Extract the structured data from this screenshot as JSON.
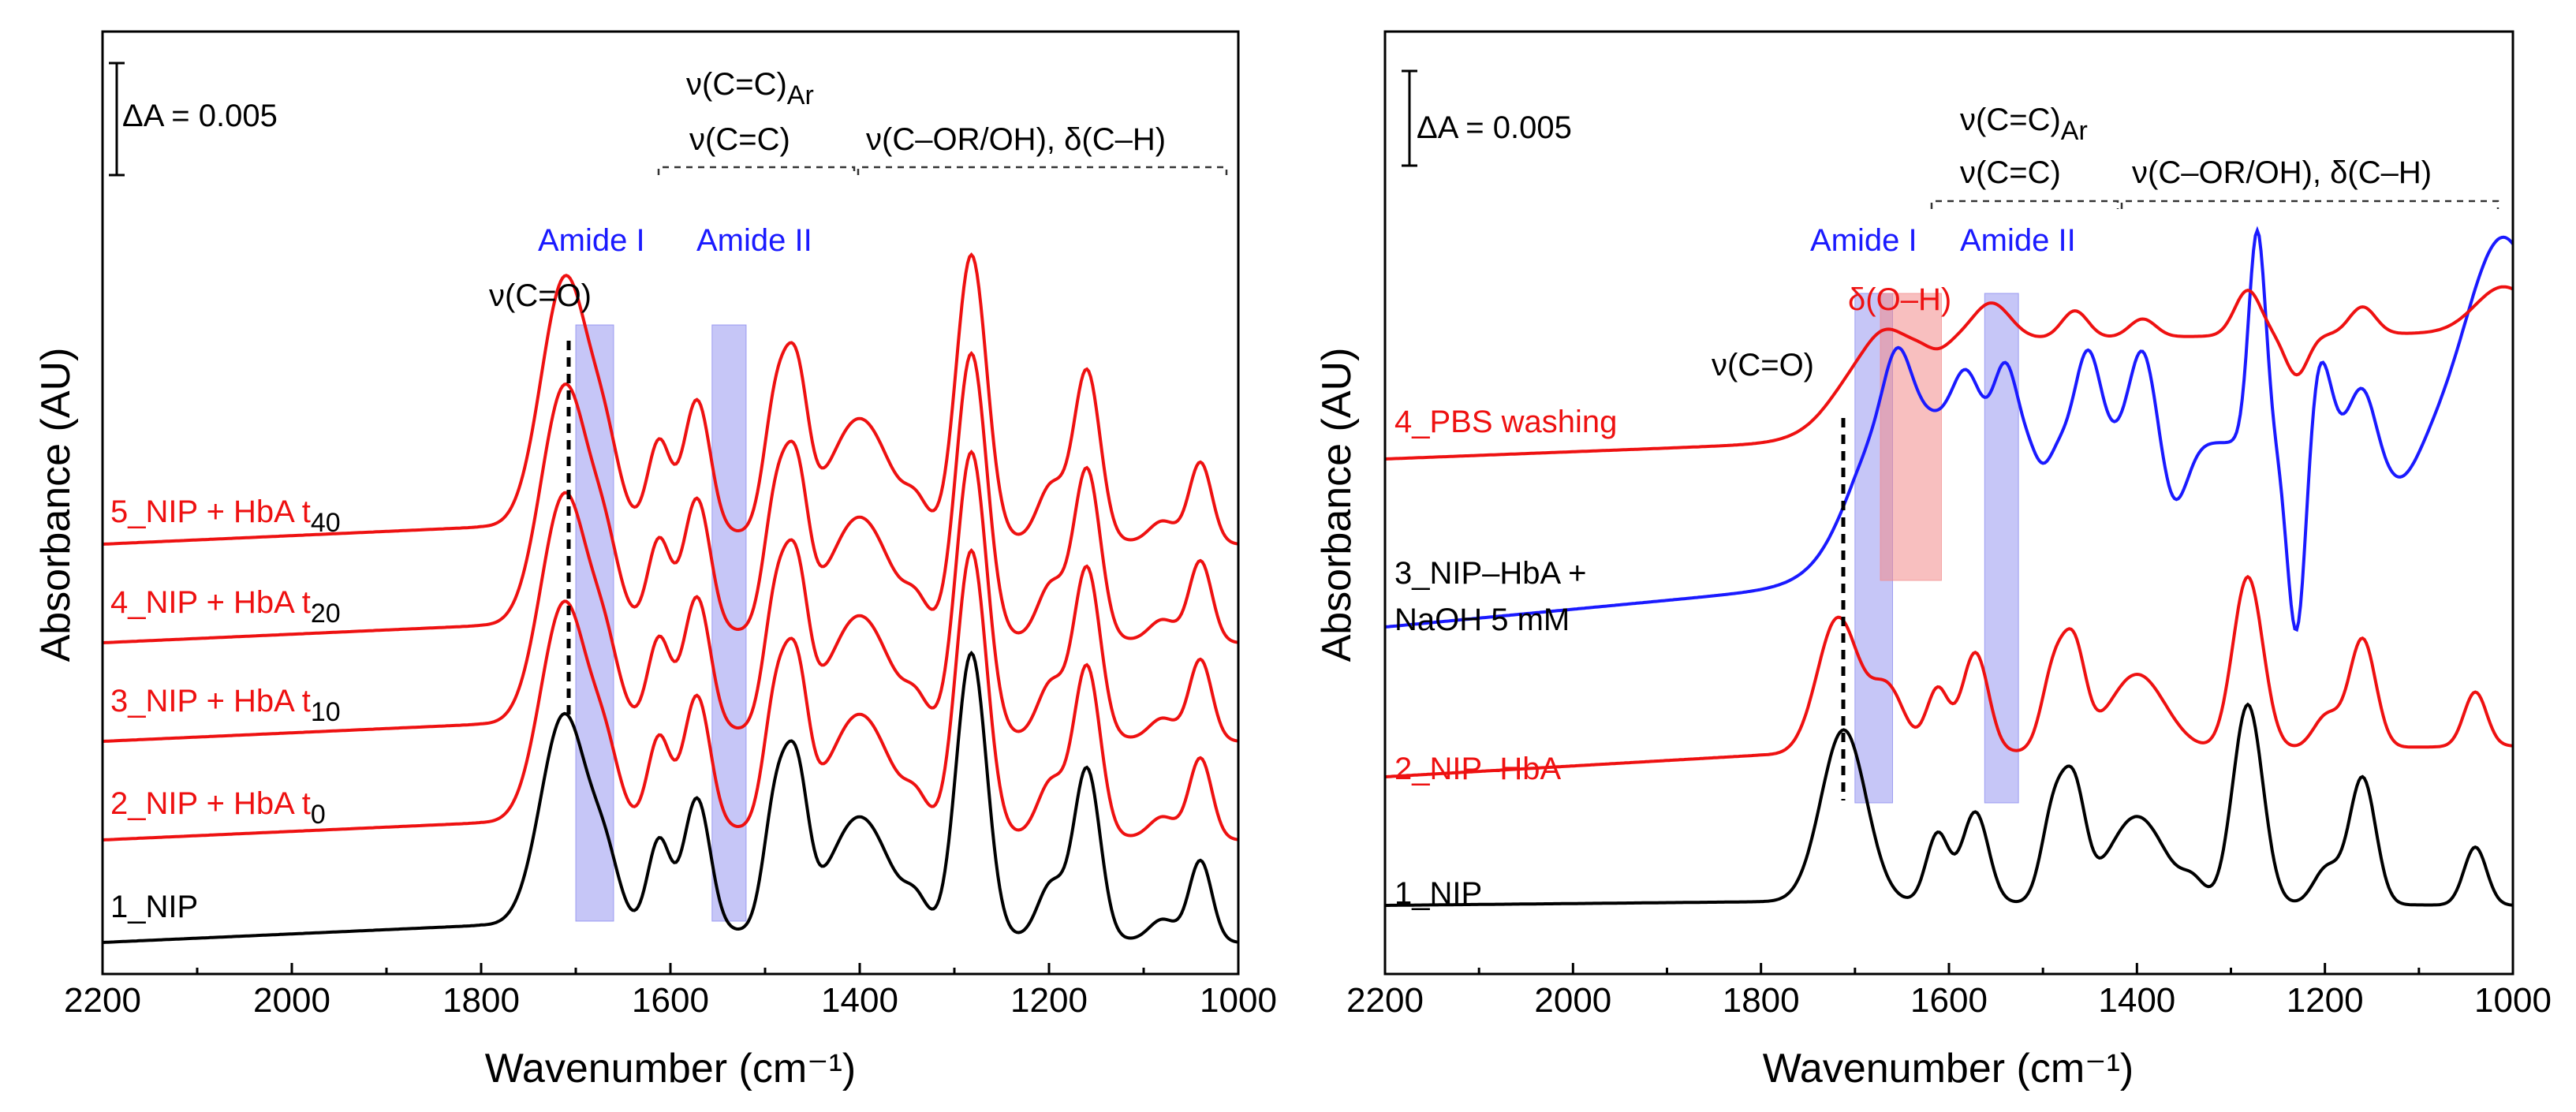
{
  "chart_data": [
    {
      "type": "line",
      "panel": "left",
      "xlabel": "Wavenumber (cm⁻¹)",
      "ylabel": "Absorbance (AU)",
      "xlim": [
        2200,
        1000
      ],
      "x_inverted": true,
      "xticks": [
        "2200",
        "2000",
        "1800",
        "1600",
        "1400",
        "1200",
        "1000"
      ],
      "scale_bar": "ΔA = 0.005",
      "band_labels": {
        "cc_ar": "ν(C=C)",
        "cc_ar_sub": "Ar",
        "cc": "ν(C=C)",
        "cor": "ν(C–OR/OH), δ(C–H)",
        "amide1": "Amide I",
        "amide2": "Amide II",
        "co": "ν(C=O)"
      },
      "shaded_regions": [
        {
          "name": "Amide I",
          "from": 1700,
          "to": 1660,
          "color": "#8080ee"
        },
        {
          "name": "Amide II",
          "from": 1556,
          "to": 1520,
          "color": "#8080ee"
        }
      ],
      "series": [
        {
          "name": "1_NIP",
          "label_main": "1_NIP",
          "label_sub": "",
          "color": "#000000",
          "offset": 0
        },
        {
          "name": "2_NIP + HbA t0",
          "label_main": "2_NIP + HbA t",
          "label_sub": "0",
          "color": "#ee1111",
          "offset": 1
        },
        {
          "name": "3_NIP + HbA t10",
          "label_main": "3_NIP + HbA t",
          "label_sub": "10",
          "color": "#ee1111",
          "offset": 2
        },
        {
          "name": "4_NIP + HbA t20",
          "label_main": "4_NIP + HbA t",
          "label_sub": "20",
          "color": "#ee1111",
          "offset": 3
        },
        {
          "name": "5_NIP + HbA t40",
          "label_main": "5_NIP + HbA t",
          "label_sub": "40",
          "color": "#ee1111",
          "offset": 4
        }
      ],
      "spectrum_peaks": [
        [
          1712,
          1.0,
          25
        ],
        [
          1668,
          0.25,
          15
        ],
        [
          1612,
          0.42,
          12
        ],
        [
          1572,
          0.62,
          14
        ],
        [
          1488,
          0.62,
          13
        ],
        [
          1466,
          0.64,
          12
        ],
        [
          1400,
          0.55,
          32
        ],
        [
          1340,
          0.12,
          12
        ],
        [
          1282,
          1.33,
          16
        ],
        [
          1198,
          0.25,
          14
        ],
        [
          1160,
          0.8,
          14
        ],
        [
          1080,
          0.1,
          14
        ],
        [
          1040,
          0.38,
          12
        ]
      ],
      "spectrum_baseline": [
        [
          2200,
          0.0
        ],
        [
          1800,
          0.08
        ],
        [
          1000,
          0.0
        ]
      ]
    },
    {
      "type": "line",
      "panel": "right",
      "xlabel": "Wavenumber (cm⁻¹)",
      "ylabel": "Absorbance (AU)",
      "xlim": [
        2200,
        1000
      ],
      "x_inverted": true,
      "xticks": [
        "2200",
        "2000",
        "1800",
        "1600",
        "1400",
        "1200",
        "1000"
      ],
      "scale_bar": "ΔA = 0.005",
      "band_labels": {
        "cc_ar": "ν(C=C)",
        "cc_ar_sub": "Ar",
        "cc": "ν(C=C)",
        "cor": "ν(C–OR/OH), δ(C–H)",
        "amide1": "Amide I",
        "amide2": "Amide II",
        "oh": "δ(O–H)",
        "co": "ν(C=O)"
      },
      "shaded_regions": [
        {
          "name": "Amide I",
          "from": 1700,
          "to": 1660,
          "color": "#8080ee"
        },
        {
          "name": "δ(O–H)",
          "from": 1673,
          "to": 1608,
          "color": "#f28a8a"
        },
        {
          "name": "Amide II",
          "from": 1562,
          "to": 1526,
          "color": "#8080ee"
        }
      ],
      "series": [
        {
          "name": "1_NIP",
          "label_lines": [
            "1_NIP"
          ],
          "color": "#000000"
        },
        {
          "name": "2_NIP–HbA",
          "label_lines": [
            "2_NIP–HbA"
          ],
          "color": "#ee1111"
        },
        {
          "name": "3_NIP–HbA + NaOH 5 mM",
          "label_lines": [
            "3_NIP–HbA +",
            "NaOH 5 mM"
          ],
          "color": "#1a1aff"
        },
        {
          "name": "4_PBS washing",
          "label_lines": [
            "4_PBS washing"
          ],
          "color": "#ee1111"
        }
      ]
    }
  ]
}
